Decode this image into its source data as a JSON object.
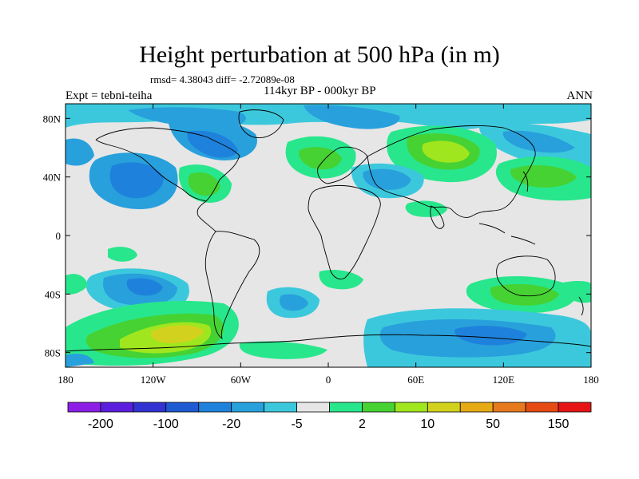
{
  "figure": {
    "title": "Height perturbation at 500 hPa (in m)",
    "stats": "rmsd= 4.38043 diff= -2.72089e-08",
    "experiment": "Expt = tebni-teiha",
    "period": "114kyr BP - 000kyr BP",
    "season": "ANN"
  },
  "map": {
    "projection": "cylindrical equidistant",
    "lon_range": [
      -180,
      180
    ],
    "lat_range": [
      -90,
      90
    ],
    "lon_ticks": [
      "180",
      "120W",
      "60W",
      "0",
      "60E",
      "120E",
      "180"
    ],
    "lat_ticks": [
      "80N",
      "40N",
      "0",
      "40S",
      "80S"
    ],
    "background_color": "#e6e6e6",
    "coastlines": true
  },
  "colorbar": {
    "colors": [
      "#8c1ee6",
      "#5a1edc",
      "#3232d2",
      "#1e5ad2",
      "#1e82dc",
      "#28a0dc",
      "#3cc8dc",
      "#e6e6e6",
      "#28e68c",
      "#46d232",
      "#a0e61e",
      "#d2d21e",
      "#e6aa14",
      "#e6781e",
      "#e64b14",
      "#e61414"
    ],
    "labels": [
      "-200",
      "-100",
      "-20",
      "-5",
      "2",
      "10",
      "50",
      "150"
    ]
  }
}
